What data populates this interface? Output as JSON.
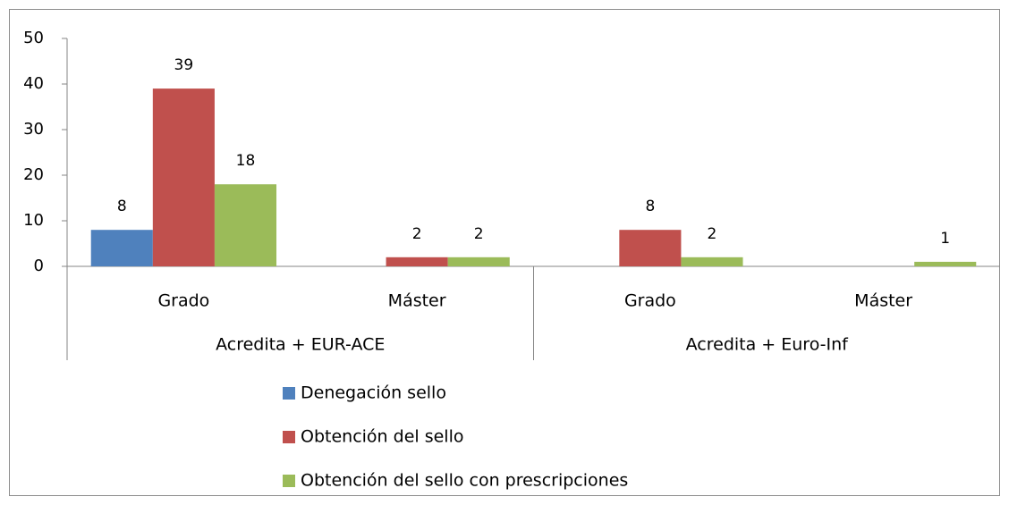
{
  "chart_data": {
    "type": "bar",
    "categories": [
      "Grado",
      "Máster",
      "Grado",
      "Máster"
    ],
    "group_labels": [
      "Acredita + EUR-ACE",
      "Acredita + Euro-Inf"
    ],
    "series": [
      {
        "name": "Denegación sello",
        "color": "#4f81bd",
        "values": [
          8,
          null,
          null,
          null
        ]
      },
      {
        "name": "Obtención del sello",
        "color": "#c0504d",
        "values": [
          39,
          2,
          8,
          null
        ]
      },
      {
        "name": "Obtención del sello con prescripciones",
        "color": "#9bbb59",
        "values": [
          18,
          2,
          2,
          1
        ]
      }
    ],
    "ylim": [
      0,
      50
    ],
    "yticks": [
      0,
      10,
      20,
      30,
      40,
      50
    ],
    "grid": false,
    "legend": "bottom"
  }
}
